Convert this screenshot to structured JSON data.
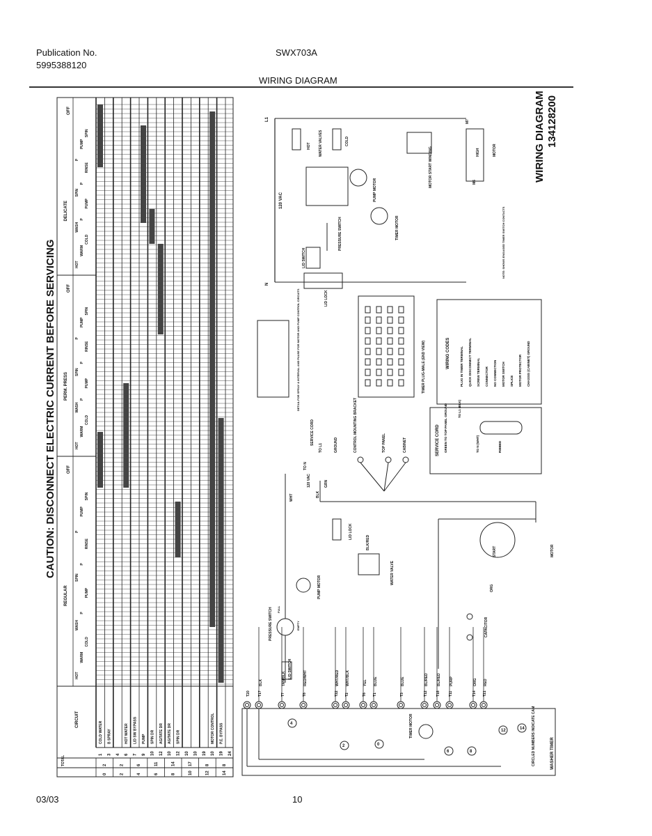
{
  "header": {
    "publication_label": "Publication No.",
    "publication_number": "5995388120",
    "model": "SWX703A",
    "title": "WIRING DIAGRAM"
  },
  "footer": {
    "date": "03/03",
    "page": "10"
  },
  "side_title": {
    "title": "WIRING DIAGRAM",
    "number": "134128200"
  },
  "caution": "CAUTION: DISCONNECT ELECTRIC CURRENT BEFORE SERVICING",
  "timer_chart": {
    "cycles": [
      "REGULAR",
      "PERM. PRESS",
      "DELICATE"
    ],
    "off_label": "OFF",
    "sub_labels": {
      "hot": "HOT",
      "warm": "WARM",
      "cold": "COLD",
      "wash": "WASH",
      "p": "P",
      "pump": "PUMP",
      "spin": "SPIN",
      "rinse": "RINSE"
    },
    "circuit_header": "CIRCUIT",
    "circuits": [
      "COLD WATER",
      "B SPRAY",
      "",
      "HOT WATER",
      "LID SW BYPASS",
      "PUMP",
      "SPIN DR",
      "AGITATE DR",
      "AGITATE DR",
      "SPIN DR",
      "",
      "",
      "",
      "MOTOR CONTROL",
      "P.E. BYPASS",
      ""
    ],
    "terminals": [
      "1",
      "3",
      "4",
      "6",
      "7",
      "9",
      "10",
      "12",
      "10",
      "12",
      "10",
      "10",
      "19",
      "10",
      "19",
      "24"
    ],
    "cams": [
      "2",
      "2",
      "6",
      "11",
      "14",
      "17",
      "8",
      "8"
    ],
    "cam_index": [
      "0",
      "2",
      "4",
      "6",
      "8",
      "10",
      "12",
      "14"
    ],
    "total_label": "TOTAL"
  },
  "schematic": {
    "labels": {
      "l1": "L1",
      "n": "N",
      "vac": "120 VAC",
      "hot": "HOT",
      "water_valves": "WATER VALVES",
      "cold": "COLD",
      "pump_motor": "PUMP MOTOR",
      "timer_motor": "TIMER MOTOR",
      "pressure_switch": "PRESSURE SWITCH",
      "lid_switch": "LID SWITCH",
      "lid_lock": "LID LOCK",
      "motor_start": "MOTOR START WINDING",
      "motor": "MOTOR",
      "high": "HIGH",
      "m1": "M1",
      "m5": "M5",
      "m6": "M6",
      "m7": "M7",
      "note": "NOTE: SHOWS ENGAGED TIMER SWITCH CONTACTS",
      "detail": "DETAIL FOR SPRAY & INTERVAL AND PAUSE FOR MOTOR AND PUMP CONTROL CIRCUITS",
      "timer_plug": "TIMER PLUG-MALE (END VIEW)",
      "service_cord": "SERVICE CORD",
      "to_n": "TO N",
      "to_l1": "TO L1",
      "ground": "GROUND",
      "bracket": "CONTROL MOUNTING BRACKET",
      "top_panel": "TOP PANEL",
      "cabinet": "CABINET",
      "grn": "GRN",
      "wht": "WHT",
      "blk": "BLK",
      "vac2": "120 VAC",
      "start": "START",
      "capacitor": "CAPACITOR",
      "org": "ORG",
      "washer_timer": "WASHER TIMER",
      "circled": "CIRCLED NUMBERS INDICATE CAM",
      "water_valve": "WATER VALVE",
      "blk_red": "BLK/RED",
      "full": "FULL",
      "empty": "EMPTY"
    },
    "terminals": [
      "T20",
      "T17",
      "T7",
      "T8",
      "T22",
      "T2",
      "T6",
      "T1",
      "T3",
      "T12",
      "T18",
      "T11",
      "T14",
      "T21"
    ],
    "wires": [
      "BLK",
      "TAN/BLK",
      "RED/WHT",
      "WHT/RED",
      "WHT/BLK",
      "YEL",
      "BLUE",
      "BLUE",
      "BL/RED",
      "BL/RED",
      "PURP",
      "ORG",
      "RED"
    ],
    "cam_switches": [
      "4",
      "2",
      "0",
      "6",
      "8",
      "12",
      "14"
    ]
  },
  "wiring_codes": {
    "title": "WIRING CODES",
    "items": [
      "PLUG IN TIMER TERMINAL",
      "QUICK DISCONNECT TERMINAL",
      "SCREW TERMINAL",
      "CONNECTOR",
      "NO CONNECTION",
      "MOTOR SWITCH",
      "SPLICE",
      "MOTOR PROTECTOR",
      "CHASSIS (CABINET) GROUND"
    ]
  },
  "service_cord_box": {
    "title": "SERVICE CORD",
    "green": "GREEN TO TOP PANEL GROUND",
    "to_l1": "TO L1 (BLK)",
    "to_n": "TO N (WHT)",
    "ribbed": "RIBBED"
  }
}
